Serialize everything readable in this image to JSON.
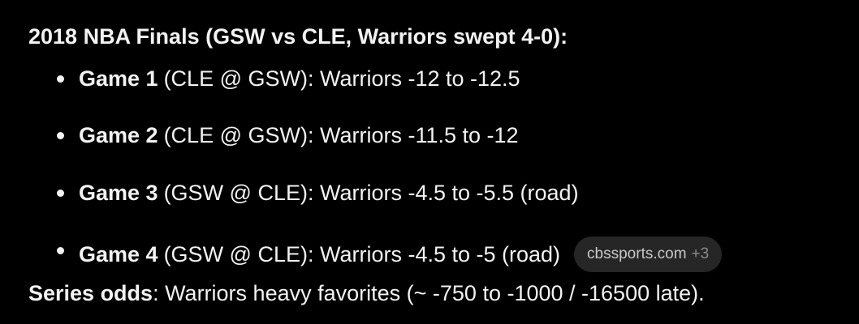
{
  "heading": "2018 NBA Finals (GSW vs CLE, Warriors swept 4-0):",
  "items": [
    {
      "label": "Game 1",
      "text": "(CLE @ GSW): Warriors -12 to -12.5"
    },
    {
      "label": "Game 2",
      "text": "(CLE @ GSW): Warriors -11.5 to -12"
    },
    {
      "label": "Game 3",
      "text": "(GSW @ CLE): Warriors -4.5 to -5.5 (road)"
    },
    {
      "label": "Game 4",
      "text": "(GSW @ CLE): Warriors -4.5 to -5 (road)"
    }
  ],
  "source_chip": {
    "site": "cbssports.com",
    "more": "+3"
  },
  "summary": {
    "label": "Series odds",
    "text": ": Warriors heavy favorites (~ -750 to -1000 / -16500 late)."
  }
}
